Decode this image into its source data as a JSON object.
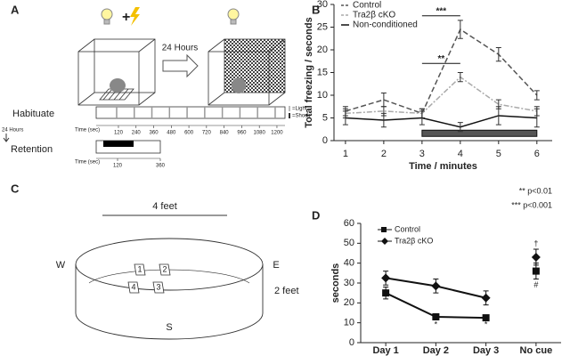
{
  "panel_a": {
    "label": "A",
    "arrow_label": "24 Hours",
    "habituate": "Habituate",
    "between": "24 Hours",
    "retention": "Retention",
    "time_label": "Time (sec)",
    "habituate_ticks": [
      120,
      240,
      360,
      480,
      600,
      720,
      840,
      960,
      1080,
      1200
    ],
    "retention_ticks": [
      120,
      360
    ],
    "legend_light": "=Light",
    "legend_shock": "=Shock"
  },
  "panel_c": {
    "label": "C",
    "width": "4 feet",
    "height": "2 feet",
    "west": "W",
    "east": "E",
    "south": "S",
    "objects": [
      "1",
      "2",
      "4",
      "3"
    ]
  },
  "chart_data": [
    {
      "type": "line",
      "label": "B",
      "xlabel": "Time / minutes",
      "ylabel": "Total freezing / seconds",
      "x": [
        1,
        2,
        3,
        4,
        5,
        6
      ],
      "xlim": [
        0.7,
        6.4
      ],
      "xticks": [
        1,
        2,
        3,
        4,
        5,
        6
      ],
      "ylim": [
        0,
        30
      ],
      "yticks": [
        0,
        5,
        10,
        15,
        20,
        25,
        30
      ],
      "series": [
        {
          "name": "Control",
          "color": "#555555",
          "dash": "6,3",
          "values": [
            6.5,
            9,
            6,
            24.5,
            19,
            10
          ],
          "errors": [
            1,
            1.5,
            1,
            2,
            1.5,
            1
          ]
        },
        {
          "name": "Tra2β cKO",
          "color": "#aaaaaa",
          "dash": "6,2,2,2",
          "values": [
            6,
            6.5,
            6,
            14,
            8,
            6.5
          ],
          "errors": [
            1,
            1,
            1,
            1,
            1,
            1
          ]
        },
        {
          "name": "Non-conditioned",
          "color": "#111111",
          "dash": "none",
          "values": [
            5,
            4.5,
            5,
            3,
            5.5,
            5
          ],
          "errors": [
            1.5,
            1.5,
            1.5,
            1,
            2,
            2
          ]
        }
      ],
      "annotations": [
        "***",
        "**"
      ],
      "notes": [
        "** p<0.01",
        "*** p<0.001"
      ]
    },
    {
      "type": "line",
      "label": "D",
      "ylabel": "seconds",
      "categories": [
        "Day 1",
        "Day 2",
        "Day 3",
        "No cue"
      ],
      "ylim": [
        0,
        60
      ],
      "yticks": [
        0,
        10,
        20,
        30,
        40,
        50,
        60
      ],
      "series": [
        {
          "name": "Control",
          "color": "#111111",
          "marker": "square",
          "values": [
            25,
            13,
            12.5,
            36
          ],
          "errors": [
            3,
            1.5,
            1,
            4
          ]
        },
        {
          "name": "Tra2β cKO",
          "color": "#111111",
          "marker": "diamond",
          "values": [
            32.5,
            28.5,
            22.5,
            43
          ],
          "errors": [
            3.5,
            3.5,
            3.5,
            4
          ]
        }
      ],
      "annotations": [
        "*",
        "*",
        "†",
        "#"
      ]
    }
  ]
}
